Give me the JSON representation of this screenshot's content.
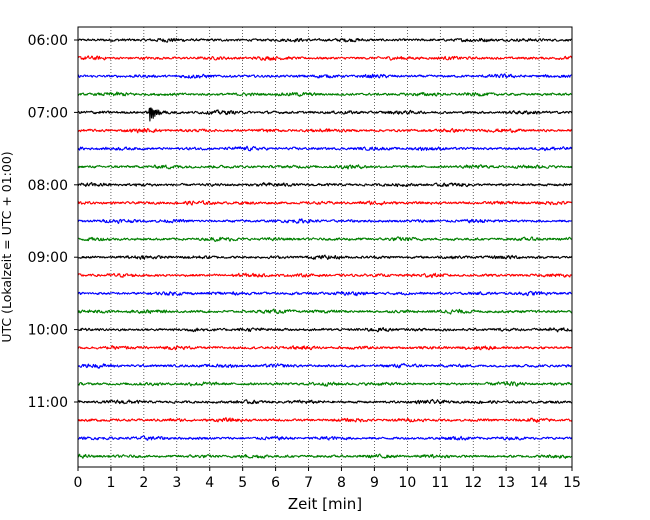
{
  "chart_data": {
    "type": "line",
    "title": "",
    "xlabel": "Zeit  [min]",
    "ylabel": "UTC (Lokalzeit = UTC + 01:00)",
    "xlim": [
      0,
      15
    ],
    "x_ticks": [
      "0",
      "1",
      "2",
      "3",
      "4",
      "5",
      "6",
      "7",
      "8",
      "9",
      "10",
      "11",
      "12",
      "13",
      "14",
      "15"
    ],
    "y_ticks": [
      "06:00",
      "07:00",
      "08:00",
      "09:00",
      "10:00",
      "11:00"
    ],
    "grid": "vertical dotted at each minute",
    "trace_colors": [
      "#000000",
      "#ff0000",
      "#0000ff",
      "#008000"
    ],
    "rows_per_hour": 4,
    "trace_count": 24,
    "traces_start": "06:00",
    "trace_interval_min": 15,
    "events": [
      {
        "trace": "07:00",
        "x": 2.2,
        "amplitude": 0.9
      }
    ]
  }
}
